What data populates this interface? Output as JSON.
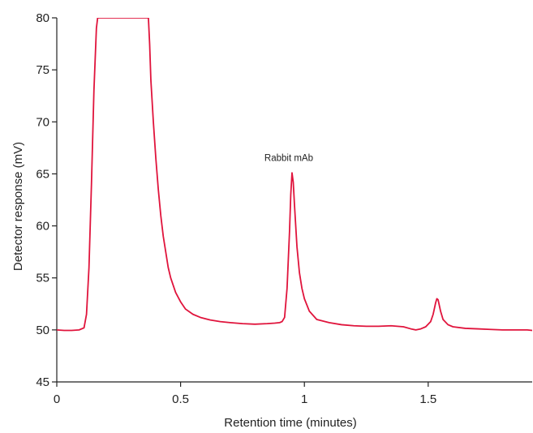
{
  "chart_data": {
    "type": "line",
    "title": "",
    "xlabel": "Retention time (minutes)",
    "ylabel": "Detector response (mV)",
    "xlim": [
      0,
      1.92
    ],
    "ylim": [
      45,
      80
    ],
    "x_ticks": [
      0,
      0.5,
      1,
      1.5
    ],
    "x_tick_labels": [
      "0",
      "0.5",
      "1",
      "1.5"
    ],
    "y_ticks": [
      45,
      50,
      55,
      60,
      65,
      70,
      75,
      80
    ],
    "y_tick_labels": [
      "45",
      "50",
      "55",
      "60",
      "65",
      "70",
      "75",
      "80"
    ],
    "grid": false,
    "line_color": "#e0143c",
    "annotations": [
      {
        "text": "Rabbit mAb",
        "x": 0.95,
        "y": 65.0
      }
    ],
    "series": [
      {
        "x": [
          0.0,
          0.03,
          0.06,
          0.09,
          0.11,
          0.12,
          0.13,
          0.14,
          0.15,
          0.16,
          0.165,
          0.37,
          0.375,
          0.38,
          0.39,
          0.4,
          0.41,
          0.42,
          0.43,
          0.44,
          0.45,
          0.46,
          0.48,
          0.5,
          0.52,
          0.55,
          0.58,
          0.62,
          0.66,
          0.7,
          0.75,
          0.8,
          0.85,
          0.88,
          0.9,
          0.91,
          0.92,
          0.93,
          0.94,
          0.945,
          0.95,
          0.955,
          0.96,
          0.97,
          0.98,
          0.99,
          1.0,
          1.02,
          1.05,
          1.1,
          1.15,
          1.2,
          1.25,
          1.3,
          1.35,
          1.4,
          1.43,
          1.45,
          1.47,
          1.49,
          1.51,
          1.52,
          1.53,
          1.535,
          1.54,
          1.55,
          1.56,
          1.58,
          1.6,
          1.65,
          1.7,
          1.75,
          1.8,
          1.85,
          1.9,
          1.92
        ],
        "y": [
          50.0,
          49.95,
          49.95,
          50.0,
          50.2,
          51.5,
          56.0,
          64.0,
          73.0,
          79.0,
          80.0,
          80.0,
          77.5,
          74.0,
          70.0,
          66.5,
          63.5,
          61.0,
          59.0,
          57.5,
          56.0,
          55.0,
          53.6,
          52.7,
          52.0,
          51.5,
          51.2,
          50.95,
          50.8,
          50.7,
          50.6,
          50.55,
          50.6,
          50.65,
          50.7,
          50.8,
          51.2,
          54.0,
          59.5,
          63.0,
          65.1,
          64.2,
          62.0,
          58.0,
          55.5,
          54.0,
          53.0,
          51.8,
          51.0,
          50.7,
          50.5,
          50.4,
          50.35,
          50.35,
          50.4,
          50.3,
          50.1,
          50.0,
          50.1,
          50.3,
          50.8,
          51.5,
          52.6,
          53.0,
          52.9,
          51.8,
          51.0,
          50.5,
          50.3,
          50.15,
          50.1,
          50.05,
          50.0,
          50.0,
          50.0,
          49.95
        ]
      }
    ]
  }
}
